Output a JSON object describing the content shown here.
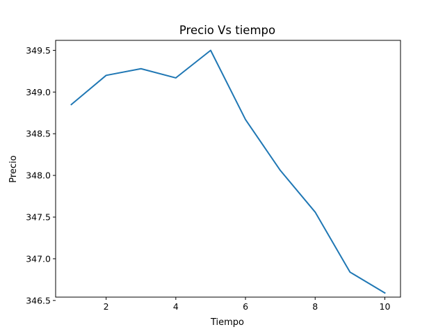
{
  "chart_data": {
    "type": "line",
    "title": "Precio Vs tiempo",
    "xlabel": "Tiempo",
    "ylabel": "Precio",
    "xlim": [
      0.55,
      10.45
    ],
    "ylim": [
      346.54,
      349.62
    ],
    "xticks": [
      2,
      4,
      6,
      8,
      10
    ],
    "yticks": [
      346.5,
      347.0,
      347.5,
      348.0,
      348.5,
      349.0,
      349.5
    ],
    "xtick_labels": [
      "2",
      "4",
      "6",
      "8",
      "10"
    ],
    "ytick_labels": [
      "346.5",
      "347.0",
      "347.5",
      "348.0",
      "348.5",
      "349.0",
      "349.5"
    ],
    "grid": false,
    "series": [
      {
        "color": "#1f77b4",
        "x": [
          1,
          2,
          3,
          4,
          5,
          6,
          7,
          8,
          9,
          10
        ],
        "y": [
          348.85,
          349.2,
          349.28,
          349.17,
          349.5,
          348.67,
          348.06,
          347.56,
          346.84,
          346.59
        ]
      }
    ]
  }
}
